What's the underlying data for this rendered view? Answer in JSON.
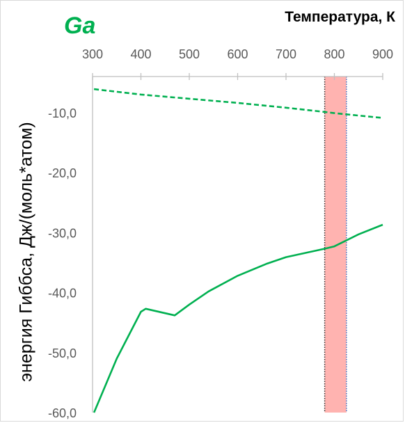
{
  "chart_data": {
    "type": "line",
    "title": "Ga",
    "xlabel": "Температура, К",
    "ylabel": "энергия Гиббса, Дж/(моль*атом)",
    "x_axis_position": "top",
    "xlim": [
      300,
      900
    ],
    "ylim": [
      -60,
      -4
    ],
    "x_ticks": [
      300,
      400,
      500,
      600,
      700,
      800,
      900
    ],
    "y_ticks": [
      -10,
      -20,
      -30,
      -40,
      -50,
      -60
    ],
    "y_tick_labels": [
      "-10,0",
      "-20,0",
      "-30,0",
      "-40,0",
      "-50,0",
      "-60,0"
    ],
    "grid": false,
    "highlight_band": {
      "x_start": 780,
      "x_end": 825,
      "color": "#ffb3b0"
    },
    "series": [
      {
        "style": "dashed",
        "color": "#00b050",
        "x": [
          303,
          400,
          500,
          600,
          700,
          780,
          800,
          850,
          900
        ],
        "y": [
          -6.1,
          -7.0,
          -7.7,
          -8.4,
          -9.2,
          -9.9,
          -10.1,
          -10.5,
          -10.9
        ]
      },
      {
        "style": "solid",
        "color": "#00b050",
        "x": [
          303,
          350,
          400,
          410,
          470,
          500,
          540,
          600,
          660,
          700,
          780,
          800,
          850,
          900
        ],
        "y": [
          -60.0,
          -51.0,
          -43.2,
          -42.7,
          -43.8,
          -42.0,
          -39.8,
          -37.2,
          -35.2,
          -34.1,
          -32.7,
          -32.3,
          -30.3,
          -28.7
        ]
      }
    ]
  }
}
